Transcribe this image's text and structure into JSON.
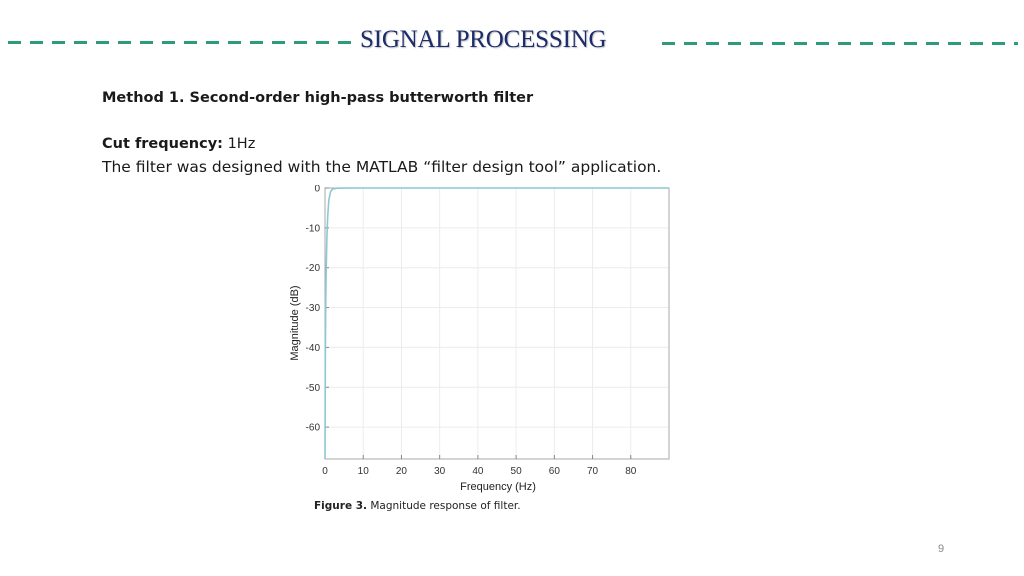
{
  "header": {
    "title": "SIGNAL PROCESSING"
  },
  "content": {
    "method_heading": "Method 1. Second-order high-pass butterworth filter",
    "cut_label": "Cut frequency:",
    "cut_value": "1Hz",
    "description": "The filter was designed with the MATLAB “filter design tool” application."
  },
  "caption": {
    "label": "Figure 3.",
    "text": "Magnitude response of filter."
  },
  "page_number": "9",
  "colors": {
    "title": "#1c2c6c",
    "dash": "#2e9c7c",
    "curve": "#8cc8d2"
  },
  "chart_data": {
    "type": "line",
    "xlabel": "Frequency (Hz)",
    "ylabel": "Magnitude (dB)",
    "xlim": [
      0,
      90
    ],
    "ylim": [
      -68,
      0
    ],
    "xticks": [
      0,
      10,
      20,
      30,
      40,
      50,
      60,
      70,
      80
    ],
    "yticks": [
      0,
      -10,
      -20,
      -30,
      -40,
      -50,
      -60
    ],
    "grid": true,
    "series": [
      {
        "x": [
          0.0,
          0.02,
          0.05,
          0.1,
          0.2,
          0.3,
          0.5,
          0.7,
          1.0,
          1.5,
          2.0,
          3.0,
          5.0,
          10.0,
          90.0
        ],
        "y": [
          -68,
          -64,
          -52,
          -40,
          -28,
          -21,
          -12.3,
          -7.3,
          -3.0,
          -0.8,
          -0.26,
          -0.05,
          -0.01,
          0,
          0
        ]
      }
    ]
  }
}
